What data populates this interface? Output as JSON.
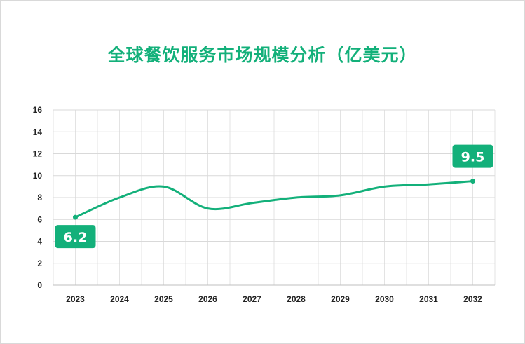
{
  "title": "全球餐饮服务市场规模分析（亿美元）",
  "colors": {
    "line": "#13b07a",
    "label_bg": "#13b07a",
    "title": "#13b07a",
    "grid": "#e3e3e3"
  },
  "chart_data": {
    "type": "line",
    "title": "全球餐饮服务市场规模分析（亿美元）",
    "xlabel": "",
    "ylabel": "",
    "categories": [
      "2023",
      "2024",
      "2025",
      "2026",
      "2027",
      "2028",
      "2029",
      "2030",
      "2031",
      "2032"
    ],
    "series": [
      {
        "values": [
          6.2,
          8.0,
          9.0,
          7.0,
          7.5,
          8.0,
          8.2,
          9.0,
          9.2,
          9.5
        ]
      }
    ],
    "ylim": [
      0,
      16
    ],
    "yticks": [
      0,
      2,
      4,
      6,
      8,
      10,
      12,
      14,
      16
    ],
    "smooth": true,
    "grid": true,
    "data_labels": [
      {
        "category": "2023",
        "text": "6.2"
      },
      {
        "category": "2032",
        "text": "9.5"
      }
    ]
  }
}
